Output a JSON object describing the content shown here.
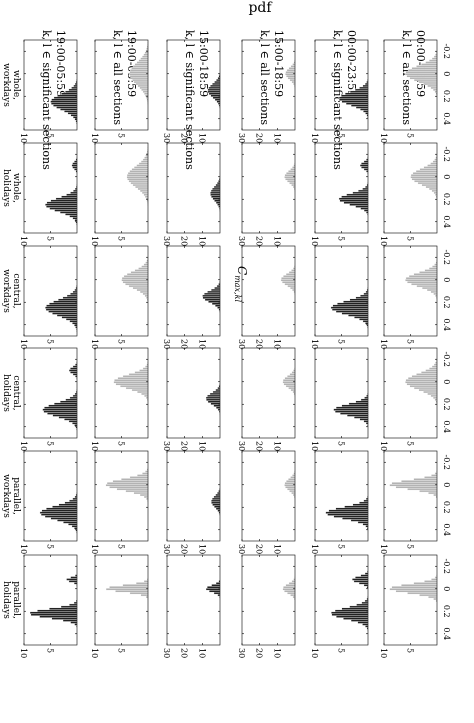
{
  "figure": {
    "ylabel": "pdf",
    "xlabel": "C",
    "xlabel_subscript": "max,kl"
  },
  "chart_data": {
    "type": "histogram",
    "orientation": "page rotated 90 degrees clockwise; x axis (C max,kl) increases downward, pdf increases to the left",
    "x_tick_labels": [
      "-0.2",
      "0",
      "0.2",
      "0.4"
    ],
    "xlim": [
      -0.3,
      0.5
    ],
    "columns": [
      {
        "time": "00:00-23:59",
        "sections": "k, l ∈ all sections",
        "color": "#b3b3b3",
        "y_ticks": [
          "10",
          "5"
        ],
        "ylim": [
          0,
          10
        ]
      },
      {
        "time": "00:00-23:59",
        "sections": "k, l ∈ significant sections",
        "color": "#222222",
        "y_ticks": [
          "10",
          "5"
        ],
        "ylim": [
          0,
          10
        ]
      },
      {
        "time": "15:00-18:59",
        "sections": "k, l ∈ all sections",
        "color": "#b3b3b3",
        "y_ticks": [
          "30",
          "20",
          "10"
        ],
        "ylim": [
          0,
          30
        ]
      },
      {
        "time": "15:00-18:59",
        "sections": "k, l ∈ significant sections",
        "color": "#222222",
        "y_ticks": [
          "30",
          "20",
          "10"
        ],
        "ylim": [
          0,
          30
        ]
      },
      {
        "time": "19:00-05:59",
        "sections": "k, l ∈ all sections",
        "color": "#b3b3b3",
        "y_ticks": [
          "10",
          "5"
        ],
        "ylim": [
          0,
          10
        ]
      },
      {
        "time": "19:00-05:59",
        "sections": "k, l ∈ significant sections",
        "color": "#222222",
        "y_ticks": [
          "10",
          "5"
        ],
        "ylim": [
          0,
          10
        ]
      }
    ],
    "rows": [
      {
        "label_1": "whole,",
        "label_2": "workdays"
      },
      {
        "label_1": "whole,",
        "label_2": "holidays"
      },
      {
        "label_1": "central,",
        "label_2": "workdays"
      },
      {
        "label_1": "central,",
        "label_2": "holidays"
      },
      {
        "label_1": "parallel,",
        "label_2": "workdays"
      },
      {
        "label_1": "parallel,",
        "label_2": "holidays"
      }
    ],
    "panels": [
      [
        {
          "peaks": [
            {
              "center": 0.0,
              "height": 6,
              "width": 0.07
            }
          ]
        },
        {
          "peaks": [
            {
              "center": 0.22,
              "height": 5.5,
              "width": 0.06
            }
          ]
        },
        {
          "peaks": [
            {
              "center": 0.0,
              "height": 5.5,
              "width": 0.05
            }
          ]
        },
        {
          "peaks": [
            {
              "center": 0.15,
              "height": 7,
              "width": 0.06
            }
          ]
        },
        {
          "peaks": [
            {
              "center": 0.0,
              "height": 3.5,
              "width": 0.1
            }
          ]
        },
        {
          "peaks": [
            {
              "center": 0.25,
              "height": 5,
              "width": 0.07
            }
          ]
        }
      ],
      [
        {
          "peaks": [
            {
              "center": 0.0,
              "height": 5,
              "width": 0.07
            }
          ]
        },
        {
          "peaks": [
            {
              "center": -0.1,
              "height": 1.5,
              "width": 0.03
            },
            {
              "center": 0.2,
              "height": 5.5,
              "width": 0.05
            }
          ]
        },
        {
          "peaks": [
            {
              "center": 0.0,
              "height": 6,
              "width": 0.05
            }
          ]
        },
        {
          "peaks": [
            {
              "center": 0.15,
              "height": 5.5,
              "width": 0.06
            }
          ]
        },
        {
          "peaks": [
            {
              "center": 0.0,
              "height": 4,
              "width": 0.09
            }
          ]
        },
        {
          "peaks": [
            {
              "center": -0.1,
              "height": 1,
              "width": 0.03
            },
            {
              "center": 0.25,
              "height": 6,
              "width": 0.06
            }
          ]
        }
      ],
      [
        {
          "peaks": [
            {
              "center": 0.0,
              "height": 6,
              "width": 0.06
            }
          ]
        },
        {
          "peaks": [
            {
              "center": 0.25,
              "height": 7,
              "width": 0.06
            }
          ]
        },
        {
          "peaks": [
            {
              "center": 0.0,
              "height": 8,
              "width": 0.05
            }
          ]
        },
        {
          "peaks": [
            {
              "center": 0.15,
              "height": 10,
              "width": 0.05
            }
          ]
        },
        {
          "peaks": [
            {
              "center": 0.0,
              "height": 5,
              "width": 0.07
            }
          ]
        },
        {
          "peaks": [
            {
              "center": 0.25,
              "height": 6,
              "width": 0.07
            }
          ]
        }
      ],
      [
        {
          "peaks": [
            {
              "center": 0.0,
              "height": 6,
              "width": 0.07
            }
          ]
        },
        {
          "peaks": [
            {
              "center": 0.25,
              "height": 6.5,
              "width": 0.05
            }
          ]
        },
        {
          "peaks": [
            {
              "center": 0.0,
              "height": 7,
              "width": 0.05
            }
          ]
        },
        {
          "peaks": [
            {
              "center": 0.15,
              "height": 8,
              "width": 0.05
            }
          ]
        },
        {
          "peaks": [
            {
              "center": 0.0,
              "height": 6.5,
              "width": 0.06
            }
          ]
        },
        {
          "peaks": [
            {
              "center": -0.1,
              "height": 1.5,
              "width": 0.03
            },
            {
              "center": 0.25,
              "height": 6.5,
              "width": 0.06
            }
          ]
        }
      ],
      [
        {
          "peaks": [
            {
              "center": 0.0,
              "height": 9,
              "width": 0.04
            }
          ]
        },
        {
          "peaks": [
            {
              "center": 0.25,
              "height": 8,
              "width": 0.05
            }
          ]
        },
        {
          "peaks": [
            {
              "center": 0.0,
              "height": 6,
              "width": 0.05
            }
          ]
        },
        {
          "peaks": [
            {
              "center": 0.15,
              "height": 5,
              "width": 0.05
            }
          ]
        },
        {
          "peaks": [
            {
              "center": 0.0,
              "height": 8,
              "width": 0.05
            }
          ]
        },
        {
          "peaks": [
            {
              "center": 0.25,
              "height": 7,
              "width": 0.06
            }
          ]
        }
      ],
      [
        {
          "peaks": [
            {
              "center": 0.0,
              "height": 9,
              "width": 0.04
            }
          ]
        },
        {
          "peaks": [
            {
              "center": -0.08,
              "height": 3,
              "width": 0.03
            },
            {
              "center": 0.22,
              "height": 7,
              "width": 0.05
            }
          ]
        },
        {
          "peaks": [
            {
              "center": 0.0,
              "height": 7,
              "width": 0.04
            }
          ]
        },
        {
          "peaks": [
            {
              "center": 0.0,
              "height": 8,
              "width": 0.03
            }
          ]
        },
        {
          "peaks": [
            {
              "center": 0.0,
              "height": 8,
              "width": 0.03
            }
          ]
        },
        {
          "peaks": [
            {
              "center": -0.08,
              "height": 2,
              "width": 0.02
            },
            {
              "center": 0.22,
              "height": 9,
              "width": 0.04
            }
          ]
        }
      ]
    ]
  }
}
